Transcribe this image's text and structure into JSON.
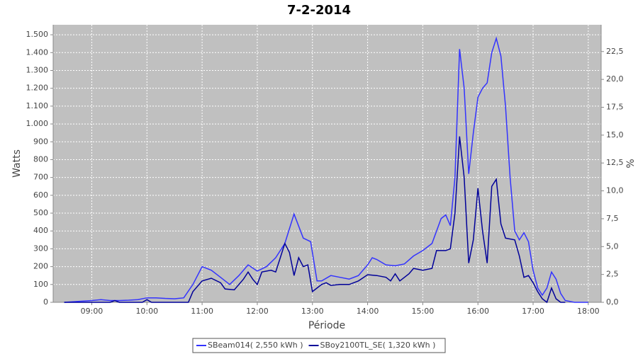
{
  "chart_data": {
    "type": "line",
    "title": "7-2-2014",
    "xlabel": "Période",
    "ylabel": "Watts",
    "y2label": "%",
    "xlim": [
      "08:18",
      "18:14"
    ],
    "xticks": [
      "09:00",
      "10:00",
      "11:00",
      "12:00",
      "13:00",
      "14:00",
      "15:00",
      "16:00",
      "17:00",
      "18:00"
    ],
    "ylim": [
      0,
      1556
    ],
    "yticks": [
      0,
      100,
      200,
      300,
      400,
      500,
      600,
      700,
      800,
      900,
      {
        "value": 1000,
        "label": "1.000"
      },
      {
        "value": 1100,
        "label": "1.100"
      },
      {
        "value": 1200,
        "label": "1.200"
      },
      {
        "value": 1300,
        "label": "1.300"
      },
      {
        "value": 1400,
        "label": "1.400"
      },
      {
        "value": 1500,
        "label": "1.500"
      }
    ],
    "y2lim": [
      0,
      24.9
    ],
    "y2ticks": [
      {
        "value": 0,
        "label": "0,0"
      },
      {
        "value": 2.5,
        "label": "2,5"
      },
      {
        "value": 5,
        "label": "5,0"
      },
      {
        "value": 7.5,
        "label": "7,5"
      },
      {
        "value": 10,
        "label": "10,0"
      },
      {
        "value": 12.5,
        "label": "12,5"
      },
      {
        "value": 15,
        "label": "15,0"
      },
      {
        "value": 17.5,
        "label": "17,5"
      },
      {
        "value": 20,
        "label": "20,0"
      },
      {
        "value": 22.5,
        "label": "22,5"
      }
    ],
    "grid": true,
    "legend": "bottom",
    "series": [
      {
        "name": "SBeam014( 2,550 kWh )",
        "color": "#3333ff",
        "x": [
          "08:30",
          "08:45",
          "09:00",
          "09:10",
          "09:20",
          "09:30",
          "09:40",
          "09:50",
          "10:00",
          "10:10",
          "10:20",
          "10:30",
          "10:40",
          "10:50",
          "11:00",
          "11:10",
          "11:20",
          "11:30",
          "11:40",
          "11:50",
          "12:00",
          "12:10",
          "12:20",
          "12:30",
          "12:40",
          "12:50",
          "12:58",
          "13:05",
          "13:10",
          "13:20",
          "13:30",
          "13:40",
          "13:50",
          "14:00",
          "14:05",
          "14:10",
          "14:20",
          "14:30",
          "14:40",
          "14:50",
          "15:00",
          "15:10",
          "15:20",
          "15:25",
          "15:30",
          "15:35",
          "15:40",
          "15:45",
          "15:50",
          "15:55",
          "16:00",
          "16:05",
          "16:10",
          "16:15",
          "16:20",
          "16:25",
          "16:30",
          "16:35",
          "16:40",
          "16:45",
          "16:50",
          "16:55",
          "17:00",
          "17:05",
          "17:10",
          "17:15",
          "17:20",
          "17:25",
          "17:30",
          "17:35",
          "17:45",
          "18:00"
        ],
        "values": [
          0,
          5,
          10,
          15,
          10,
          10,
          12,
          15,
          25,
          25,
          22,
          20,
          25,
          100,
          200,
          180,
          140,
          100,
          150,
          210,
          175,
          200,
          250,
          330,
          495,
          360,
          340,
          120,
          120,
          150,
          140,
          130,
          150,
          210,
          250,
          240,
          210,
          205,
          215,
          260,
          290,
          330,
          470,
          490,
          430,
          700,
          1420,
          1200,
          720,
          950,
          1150,
          1200,
          1230,
          1400,
          1480,
          1380,
          1100,
          700,
          400,
          350,
          390,
          340,
          180,
          80,
          40,
          80,
          170,
          130,
          50,
          10,
          0,
          0
        ]
      },
      {
        "name": "SBoy2100TL_SE( 1,320 kWh )",
        "color": "#000099",
        "x": [
          "08:30",
          "09:20",
          "09:25",
          "09:30",
          "09:55",
          "10:00",
          "10:05",
          "10:45",
          "10:50",
          "11:00",
          "11:10",
          "11:20",
          "11:25",
          "11:35",
          "11:45",
          "11:50",
          "11:55",
          "12:00",
          "12:05",
          "12:15",
          "12:20",
          "12:25",
          "12:30",
          "12:35",
          "12:40",
          "12:45",
          "12:50",
          "12:55",
          "13:00",
          "13:10",
          "13:15",
          "13:20",
          "13:30",
          "13:40",
          "13:50",
          "14:00",
          "14:10",
          "14:20",
          "14:25",
          "14:30",
          "14:35",
          "14:45",
          "14:50",
          "15:00",
          "15:10",
          "15:15",
          "15:25",
          "15:30",
          "15:35",
          "15:40",
          "15:45",
          "15:50",
          "15:55",
          "16:00",
          "16:05",
          "16:10",
          "16:15",
          "16:20",
          "16:25",
          "16:30",
          "16:40",
          "16:45",
          "16:50",
          "16:55",
          "17:00",
          "17:05",
          "17:10",
          "17:15",
          "17:20",
          "17:25",
          "17:30",
          "17:35"
        ],
        "values": [
          0,
          0,
          10,
          0,
          0,
          15,
          0,
          0,
          60,
          120,
          135,
          110,
          75,
          70,
          130,
          170,
          130,
          100,
          170,
          180,
          170,
          250,
          330,
          280,
          150,
          250,
          200,
          210,
          60,
          100,
          110,
          95,
          100,
          100,
          120,
          155,
          150,
          140,
          120,
          160,
          120,
          160,
          190,
          180,
          190,
          290,
          290,
          300,
          500,
          930,
          700,
          220,
          350,
          640,
          400,
          220,
          650,
          690,
          440,
          360,
          350,
          260,
          140,
          150,
          110,
          60,
          20,
          0,
          80,
          20,
          0,
          0
        ]
      }
    ]
  }
}
